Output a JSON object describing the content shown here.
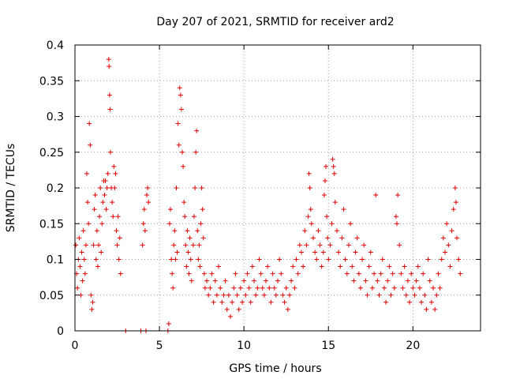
{
  "chart_data": {
    "type": "scatter",
    "title": "Day 207 of 2021, SRMTID for receiver ard2",
    "xlabel": "GPS time / hours",
    "ylabel": "SRMTID / TECUs",
    "xlim": [
      0,
      24
    ],
    "ylim": [
      0,
      0.4
    ],
    "x_ticks": [
      "0",
      "5",
      "10",
      "15",
      "20"
    ],
    "x_tick_values": [
      0,
      5,
      10,
      15,
      20
    ],
    "y_ticks": [
      "0",
      "0.05",
      "0.1",
      "0.15",
      "0.2",
      "0.25",
      "0.3",
      "0.35",
      "0.4"
    ],
    "y_tick_values": [
      0,
      0.05,
      0.1,
      0.15,
      0.2,
      0.25,
      0.3,
      0.35,
      0.4
    ],
    "grid": true,
    "marker": "+",
    "color": "#e00000",
    "series": [
      {
        "name": "SRMTID",
        "points": [
          [
            0.05,
            0.12
          ],
          [
            0.1,
            0.08
          ],
          [
            0.15,
            0.06
          ],
          [
            0.2,
            0.1
          ],
          [
            0.25,
            0.13
          ],
          [
            0.3,
            0.09
          ],
          [
            0.35,
            0.05
          ],
          [
            0.4,
            0.11
          ],
          [
            0.45,
            0.07
          ],
          [
            0.5,
            0.14
          ],
          [
            0.55,
            0.1
          ],
          [
            0.6,
            0.08
          ],
          [
            0.65,
            0.12
          ],
          [
            0.7,
            0.22
          ],
          [
            0.75,
            0.18
          ],
          [
            0.8,
            0.15
          ],
          [
            0.85,
            0.29
          ],
          [
            0.9,
            0.26
          ],
          [
            0.95,
            0.05
          ],
          [
            1.0,
            0.03
          ],
          [
            1.05,
            0.04
          ],
          [
            1.1,
            0.12
          ],
          [
            1.15,
            0.17
          ],
          [
            1.2,
            0.19
          ],
          [
            1.25,
            0.1
          ],
          [
            1.3,
            0.14
          ],
          [
            1.35,
            0.09
          ],
          [
            1.4,
            0.12
          ],
          [
            1.45,
            0.16
          ],
          [
            1.5,
            0.2
          ],
          [
            1.55,
            0.11
          ],
          [
            1.6,
            0.15
          ],
          [
            1.65,
            0.18
          ],
          [
            1.7,
            0.21
          ],
          [
            1.75,
            0.19
          ],
          [
            1.8,
            0.21
          ],
          [
            1.85,
            0.17
          ],
          [
            1.9,
            0.2
          ],
          [
            1.95,
            0.22
          ],
          [
            2.0,
            0.38
          ],
          [
            2.02,
            0.37
          ],
          [
            2.05,
            0.33
          ],
          [
            2.08,
            0.31
          ],
          [
            2.1,
            0.25
          ],
          [
            2.15,
            0.2
          ],
          [
            2.2,
            0.18
          ],
          [
            2.25,
            0.16
          ],
          [
            2.3,
            0.23
          ],
          [
            2.35,
            0.2
          ],
          [
            2.4,
            0.22
          ],
          [
            2.45,
            0.14
          ],
          [
            2.5,
            0.12
          ],
          [
            2.55,
            0.16
          ],
          [
            2.6,
            0.1
          ],
          [
            2.65,
            0.13
          ],
          [
            2.7,
            0.08
          ],
          [
            3.0,
            0.0
          ],
          [
            3.9,
            0.0
          ],
          [
            4.0,
            0.12
          ],
          [
            4.05,
            0.15
          ],
          [
            4.1,
            0.17
          ],
          [
            4.15,
            0.14
          ],
          [
            4.2,
            0.0
          ],
          [
            4.25,
            0.19
          ],
          [
            4.3,
            0.2
          ],
          [
            4.35,
            0.18
          ],
          [
            5.5,
            0.0
          ],
          [
            5.55,
            0.01
          ],
          [
            5.6,
            0.15
          ],
          [
            5.65,
            0.17
          ],
          [
            5.7,
            0.1
          ],
          [
            5.75,
            0.08
          ],
          [
            5.8,
            0.06
          ],
          [
            5.85,
            0.12
          ],
          [
            5.9,
            0.14
          ],
          [
            5.95,
            0.1
          ],
          [
            6.0,
            0.2
          ],
          [
            6.05,
            0.11
          ],
          [
            6.1,
            0.29
          ],
          [
            6.15,
            0.26
          ],
          [
            6.2,
            0.34
          ],
          [
            6.25,
            0.33
          ],
          [
            6.3,
            0.31
          ],
          [
            6.35,
            0.25
          ],
          [
            6.4,
            0.23
          ],
          [
            6.45,
            0.18
          ],
          [
            6.5,
            0.16
          ],
          [
            6.55,
            0.12
          ],
          [
            6.6,
            0.09
          ],
          [
            6.65,
            0.14
          ],
          [
            6.7,
            0.11
          ],
          [
            6.75,
            0.08
          ],
          [
            6.8,
            0.13
          ],
          [
            6.85,
            0.1
          ],
          [
            6.9,
            0.07
          ],
          [
            7.0,
            0.12
          ],
          [
            7.05,
            0.16
          ],
          [
            7.1,
            0.2
          ],
          [
            7.15,
            0.25
          ],
          [
            7.2,
            0.28
          ],
          [
            7.25,
            0.14
          ],
          [
            7.3,
            0.1
          ],
          [
            7.35,
            0.12
          ],
          [
            7.4,
            0.09
          ],
          [
            7.45,
            0.15
          ],
          [
            7.5,
            0.2
          ],
          [
            7.55,
            0.17
          ],
          [
            7.6,
            0.13
          ],
          [
            7.65,
            0.08
          ],
          [
            7.7,
            0.06
          ],
          [
            7.8,
            0.07
          ],
          [
            7.9,
            0.05
          ],
          [
            8.0,
            0.06
          ],
          [
            8.1,
            0.08
          ],
          [
            8.2,
            0.04
          ],
          [
            8.3,
            0.07
          ],
          [
            8.4,
            0.05
          ],
          [
            8.5,
            0.09
          ],
          [
            8.6,
            0.06
          ],
          [
            8.7,
            0.04
          ],
          [
            8.8,
            0.05
          ],
          [
            8.9,
            0.07
          ],
          [
            9.0,
            0.03
          ],
          [
            9.1,
            0.05
          ],
          [
            9.2,
            0.02
          ],
          [
            9.3,
            0.04
          ],
          [
            9.4,
            0.06
          ],
          [
            9.5,
            0.08
          ],
          [
            9.6,
            0.05
          ],
          [
            9.7,
            0.03
          ],
          [
            9.8,
            0.06
          ],
          [
            9.9,
            0.04
          ],
          [
            10.0,
            0.07
          ],
          [
            10.1,
            0.05
          ],
          [
            10.2,
            0.08
          ],
          [
            10.3,
            0.06
          ],
          [
            10.4,
            0.04
          ],
          [
            10.5,
            0.09
          ],
          [
            10.6,
            0.07
          ],
          [
            10.7,
            0.05
          ],
          [
            10.8,
            0.06
          ],
          [
            10.9,
            0.1
          ],
          [
            11.0,
            0.08
          ],
          [
            11.1,
            0.06
          ],
          [
            11.2,
            0.05
          ],
          [
            11.3,
            0.07
          ],
          [
            11.4,
            0.09
          ],
          [
            11.5,
            0.06
          ],
          [
            11.6,
            0.04
          ],
          [
            11.7,
            0.08
          ],
          [
            11.8,
            0.06
          ],
          [
            11.9,
            0.05
          ],
          [
            12.0,
            0.07
          ],
          [
            12.1,
            0.1
          ],
          [
            12.2,
            0.08
          ],
          [
            12.3,
            0.05
          ],
          [
            12.4,
            0.04
          ],
          [
            12.5,
            0.06
          ],
          [
            12.6,
            0.03
          ],
          [
            12.7,
            0.05
          ],
          [
            12.8,
            0.07
          ],
          [
            12.9,
            0.09
          ],
          [
            13.0,
            0.06
          ],
          [
            13.1,
            0.1
          ],
          [
            13.2,
            0.08
          ],
          [
            13.3,
            0.12
          ],
          [
            13.4,
            0.11
          ],
          [
            13.5,
            0.09
          ],
          [
            13.6,
            0.14
          ],
          [
            13.7,
            0.12
          ],
          [
            13.8,
            0.16
          ],
          [
            13.85,
            0.22
          ],
          [
            13.9,
            0.2
          ],
          [
            13.95,
            0.17
          ],
          [
            14.0,
            0.15
          ],
          [
            14.1,
            0.13
          ],
          [
            14.2,
            0.11
          ],
          [
            14.3,
            0.1
          ],
          [
            14.4,
            0.14
          ],
          [
            14.5,
            0.12
          ],
          [
            14.6,
            0.09
          ],
          [
            14.7,
            0.11
          ],
          [
            14.75,
            0.19
          ],
          [
            14.8,
            0.21
          ],
          [
            14.85,
            0.23
          ],
          [
            14.9,
            0.16
          ],
          [
            14.95,
            0.13
          ],
          [
            15.0,
            0.1
          ],
          [
            15.1,
            0.12
          ],
          [
            15.2,
            0.15
          ],
          [
            15.25,
            0.24
          ],
          [
            15.3,
            0.23
          ],
          [
            15.35,
            0.22
          ],
          [
            15.4,
            0.18
          ],
          [
            15.5,
            0.14
          ],
          [
            15.6,
            0.11
          ],
          [
            15.7,
            0.09
          ],
          [
            15.8,
            0.13
          ],
          [
            15.9,
            0.17
          ],
          [
            16.0,
            0.1
          ],
          [
            16.1,
            0.08
          ],
          [
            16.2,
            0.12
          ],
          [
            16.3,
            0.15
          ],
          [
            16.4,
            0.09
          ],
          [
            16.5,
            0.07
          ],
          [
            16.6,
            0.11
          ],
          [
            16.7,
            0.13
          ],
          [
            16.8,
            0.08
          ],
          [
            16.9,
            0.06
          ],
          [
            17.0,
            0.1
          ],
          [
            17.1,
            0.12
          ],
          [
            17.2,
            0.07
          ],
          [
            17.3,
            0.05
          ],
          [
            17.4,
            0.09
          ],
          [
            17.5,
            0.11
          ],
          [
            17.6,
            0.06
          ],
          [
            17.7,
            0.08
          ],
          [
            17.8,
            0.19
          ],
          [
            17.9,
            0.07
          ],
          [
            18.0,
            0.05
          ],
          [
            18.1,
            0.08
          ],
          [
            18.2,
            0.1
          ],
          [
            18.3,
            0.06
          ],
          [
            18.4,
            0.04
          ],
          [
            18.5,
            0.07
          ],
          [
            18.6,
            0.09
          ],
          [
            18.7,
            0.05
          ],
          [
            18.8,
            0.08
          ],
          [
            18.9,
            0.06
          ],
          [
            19.0,
            0.16
          ],
          [
            19.05,
            0.15
          ],
          [
            19.1,
            0.19
          ],
          [
            19.2,
            0.12
          ],
          [
            19.3,
            0.08
          ],
          [
            19.4,
            0.06
          ],
          [
            19.5,
            0.09
          ],
          [
            19.6,
            0.05
          ],
          [
            19.7,
            0.07
          ],
          [
            19.8,
            0.04
          ],
          [
            19.9,
            0.08
          ],
          [
            20.0,
            0.06
          ],
          [
            20.1,
            0.05
          ],
          [
            20.2,
            0.07
          ],
          [
            20.3,
            0.09
          ],
          [
            20.4,
            0.06
          ],
          [
            20.5,
            0.04
          ],
          [
            20.6,
            0.08
          ],
          [
            20.7,
            0.05
          ],
          [
            20.8,
            0.03
          ],
          [
            20.9,
            0.1
          ],
          [
            21.0,
            0.07
          ],
          [
            21.1,
            0.04
          ],
          [
            21.2,
            0.06
          ],
          [
            21.3,
            0.03
          ],
          [
            21.4,
            0.05
          ],
          [
            21.5,
            0.08
          ],
          [
            21.6,
            0.06
          ],
          [
            21.7,
            0.1
          ],
          [
            21.8,
            0.13
          ],
          [
            21.9,
            0.11
          ],
          [
            22.0,
            0.15
          ],
          [
            22.1,
            0.12
          ],
          [
            22.2,
            0.09
          ],
          [
            22.3,
            0.14
          ],
          [
            22.4,
            0.17
          ],
          [
            22.5,
            0.2
          ],
          [
            22.55,
            0.18
          ],
          [
            22.6,
            0.13
          ],
          [
            22.7,
            0.1
          ],
          [
            22.8,
            0.08
          ]
        ]
      }
    ]
  }
}
